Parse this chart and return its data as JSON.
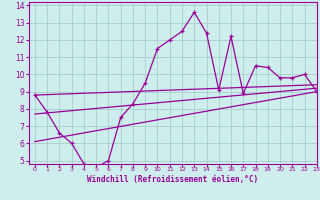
{
  "x": [
    0,
    1,
    2,
    3,
    4,
    5,
    6,
    7,
    8,
    9,
    10,
    11,
    12,
    13,
    14,
    15,
    16,
    17,
    18,
    19,
    20,
    21,
    22,
    23
  ],
  "y_main": [
    8.8,
    7.8,
    6.6,
    6.0,
    4.8,
    4.6,
    5.0,
    7.5,
    8.3,
    9.5,
    11.5,
    12.0,
    12.5,
    13.6,
    12.4,
    9.1,
    12.2,
    8.9,
    10.5,
    10.4,
    9.8,
    9.8,
    10.0,
    9.0
  ],
  "trend1_x": [
    0,
    23
  ],
  "trend1_y": [
    8.8,
    9.4
  ],
  "trend2_x": [
    0,
    23
  ],
  "trend2_y": [
    7.7,
    9.2
  ],
  "trend3_x": [
    0,
    23
  ],
  "trend3_y": [
    6.1,
    9.0
  ],
  "bg_color": "#ceeeed",
  "grid_color": "#aacccc",
  "line_color": "#990099",
  "axis_color": "#660066",
  "xlabel": "Windchill (Refroidissement éolien,°C)",
  "xlim": [
    -0.5,
    23
  ],
  "ylim": [
    4.8,
    14.2
  ],
  "yticks": [
    5,
    6,
    7,
    8,
    9,
    10,
    11,
    12,
    13,
    14
  ],
  "xticks": [
    0,
    1,
    2,
    3,
    4,
    5,
    6,
    7,
    8,
    9,
    10,
    11,
    12,
    13,
    14,
    15,
    16,
    17,
    18,
    19,
    20,
    21,
    22,
    23
  ]
}
